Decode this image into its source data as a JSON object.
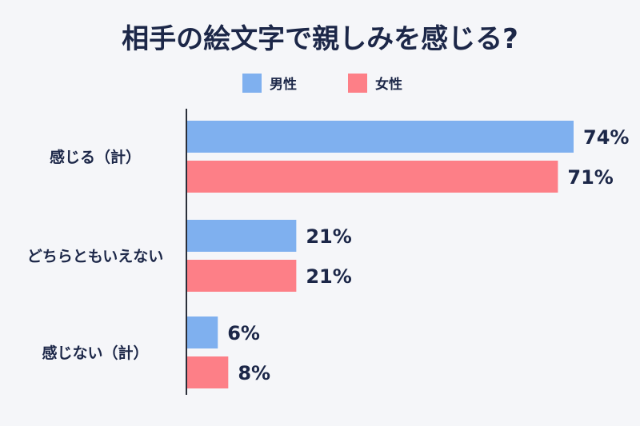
{
  "chart_data": {
    "type": "bar",
    "orientation": "horizontal",
    "title": "相手の絵文字で親しみを感じる?",
    "categories": [
      "感じる（計）",
      "どちらともいえない",
      "感じない（計）"
    ],
    "series": [
      {
        "name": "男性",
        "values": [
          74,
          21,
          6
        ],
        "color": "#7fb0ef"
      },
      {
        "name": "女性",
        "values": [
          71,
          21,
          8
        ],
        "color": "#fd7f87"
      }
    ],
    "value_suffix": "%",
    "xlim": [
      0,
      74
    ],
    "grid": false,
    "legend_position": "top-center"
  },
  "colors": {
    "background": "#f5f6f9",
    "text": "#1c2748",
    "axis": "#2a2f3a"
  }
}
